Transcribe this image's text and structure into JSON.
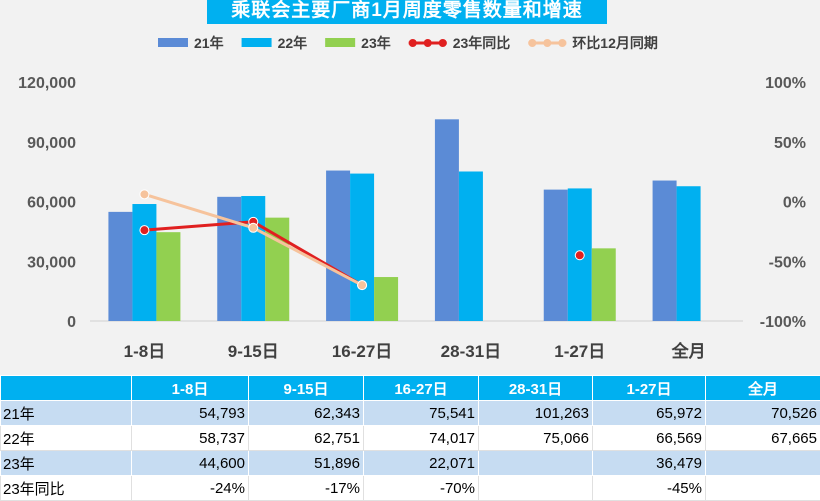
{
  "chart_data": {
    "type": "bar",
    "title": "乘联会主要厂商1月周度零售数量和增速",
    "categories": [
      "1-8日",
      "9-15日",
      "16-27日",
      "28-31日",
      "1-27日",
      "全月"
    ],
    "series": [
      {
        "name": "21年",
        "kind": "bar",
        "color": "#5b8bd6",
        "values": [
          54793,
          62343,
          75541,
          101263,
          65972,
          70526
        ]
      },
      {
        "name": "22年",
        "kind": "bar",
        "color": "#00b0f0",
        "values": [
          58737,
          62751,
          74017,
          75066,
          66569,
          67665
        ]
      },
      {
        "name": "23年",
        "kind": "bar",
        "color": "#92d050",
        "values": [
          44600,
          51896,
          22071,
          null,
          36479,
          null
        ]
      },
      {
        "name": "23年同比",
        "kind": "line",
        "axis": "right",
        "color": "#e02020",
        "values": [
          -0.24,
          -0.17,
          -0.7,
          null,
          -0.45,
          null
        ]
      },
      {
        "name": "环比12月同期",
        "kind": "line",
        "axis": "right",
        "color": "#f6c39c",
        "values": [
          0.06,
          -0.22,
          -0.7,
          null,
          null,
          null
        ]
      }
    ],
    "y_left": {
      "min": 0,
      "max": 120000,
      "ticks": [
        "0",
        "30,000",
        "60,000",
        "90,000",
        "120,000"
      ]
    },
    "y_right": {
      "min": -1,
      "max": 1,
      "ticks": [
        "-100%",
        "-50%",
        "0%",
        "50%",
        "100%"
      ]
    }
  },
  "table": {
    "header": [
      "",
      "1-8日",
      "9-15日",
      "16-27日",
      "28-31日",
      "1-27日",
      "全月"
    ],
    "rows": [
      [
        "21年",
        "54,793",
        "62,343",
        "75,541",
        "101,263",
        "65,972",
        "70,526"
      ],
      [
        "22年",
        "58,737",
        "62,751",
        "74,017",
        "75,066",
        "66,569",
        "67,665"
      ],
      [
        "23年",
        "44,600",
        "51,896",
        "22,071",
        "",
        "36,479",
        ""
      ],
      [
        "23年同比",
        "-24%",
        "-17%",
        "-70%",
        "",
        "-45%",
        ""
      ]
    ]
  }
}
